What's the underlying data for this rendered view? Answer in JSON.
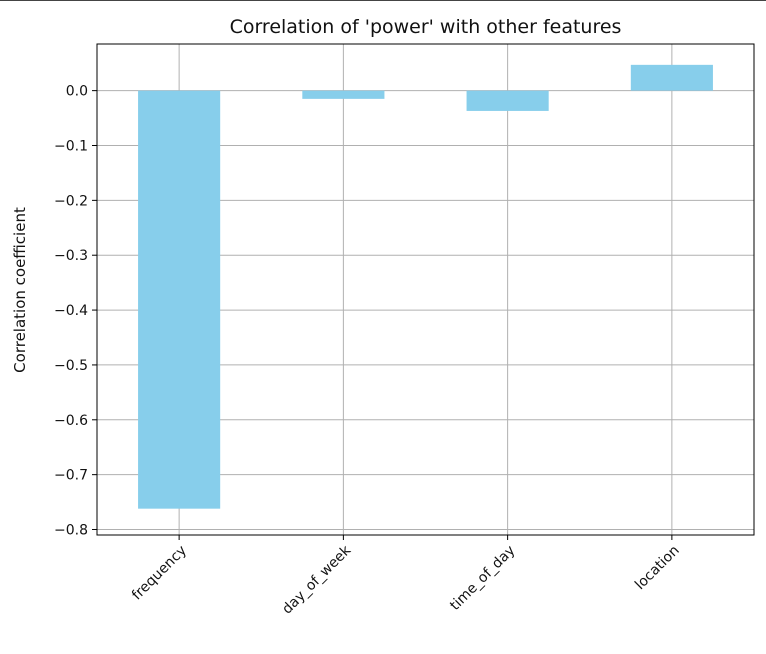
{
  "chart_data": {
    "type": "bar",
    "title": "Correlation of 'power' with other features",
    "xlabel": "",
    "ylabel": "Correlation coefficient",
    "categories": [
      "frequency",
      "day_of_week",
      "time_of_day",
      "location"
    ],
    "values": [
      -0.762,
      -0.015,
      -0.037,
      0.047
    ],
    "ylim": [
      -0.81,
      0.085
    ],
    "yticks": [
      0.0,
      -0.1,
      -0.2,
      -0.3,
      -0.4,
      -0.5,
      -0.6,
      -0.7,
      -0.8
    ],
    "ytick_labels": [
      "0.0",
      "−0.1",
      "−0.2",
      "−0.3",
      "−0.4",
      "−0.5",
      "−0.6",
      "−0.7",
      "−0.8"
    ],
    "grid": true,
    "legend": "none",
    "bar_color": "#87ceeb",
    "grid_color": "#b0b0b0"
  }
}
